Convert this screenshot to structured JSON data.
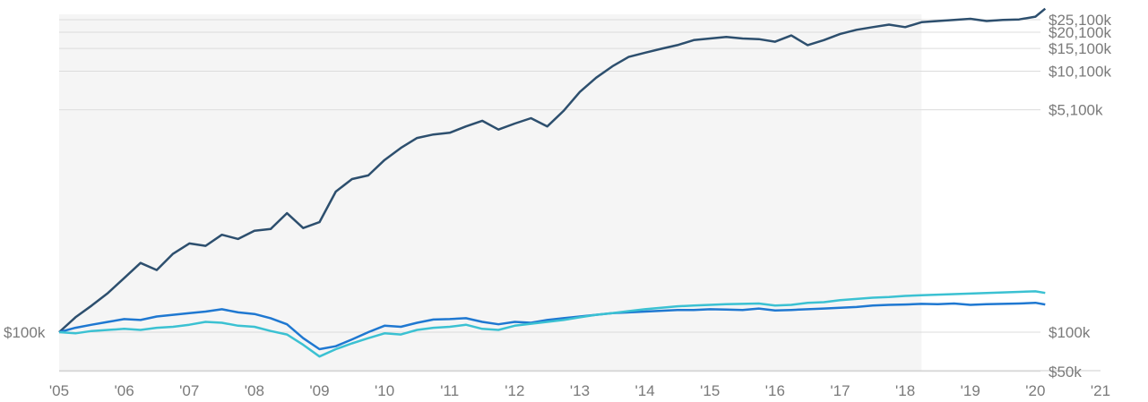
{
  "chart_data": {
    "type": "line",
    "title": "",
    "xlabel": "",
    "ylabel": "",
    "y_scale": "log",
    "grid": true,
    "x_ticks": [
      "'05",
      "'06",
      "'07",
      "'08",
      "'09",
      "'10",
      "'11",
      "'12",
      "'13",
      "'14",
      "'15",
      "'16",
      "'17",
      "'18",
      "'19",
      "'20",
      "'21"
    ],
    "x_range": [
      2005,
      2021
    ],
    "shaded_region": [
      2005,
      2018.25
    ],
    "y_left_ticks": [
      {
        "value": 100,
        "label": "$100k"
      }
    ],
    "y_right_ticks": [
      {
        "value": 25100,
        "label": "$25,100k"
      },
      {
        "value": 20100,
        "label": "$20,100k"
      },
      {
        "value": 15100,
        "label": "$15,100k"
      },
      {
        "value": 10100,
        "label": "$10,100k"
      },
      {
        "value": 5100,
        "label": "$5,100k"
      },
      {
        "value": 100,
        "label": "$100k"
      },
      {
        "value": 50,
        "label": "$50k"
      }
    ],
    "colors": {
      "series_1": "#2d4f6e",
      "series_2": "#1f78d1",
      "series_3": "#3bc1d2",
      "shade": "#f5f5f5"
    },
    "series": [
      {
        "color": "#2d4f6e",
        "x": [
          2005.0,
          2005.25,
          2005.5,
          2005.75,
          2006.0,
          2006.25,
          2006.5,
          2006.75,
          2007.0,
          2007.25,
          2007.5,
          2007.75,
          2008.0,
          2008.25,
          2008.5,
          2008.75,
          2009.0,
          2009.25,
          2009.5,
          2009.75,
          2010.0,
          2010.25,
          2010.5,
          2010.75,
          2011.0,
          2011.25,
          2011.5,
          2011.75,
          2012.0,
          2012.25,
          2012.5,
          2012.75,
          2013.0,
          2013.25,
          2013.5,
          2013.75,
          2014.0,
          2014.25,
          2014.5,
          2014.75,
          2015.0,
          2015.25,
          2015.5,
          2015.75,
          2016.0,
          2016.25,
          2016.5,
          2016.75,
          2017.0,
          2017.25,
          2017.5,
          2017.75,
          2018.0,
          2018.25,
          2018.5,
          2018.75,
          2019.0,
          2019.25,
          2019.5,
          2019.75,
          2020.0,
          2020.15
        ],
        "y": [
          100,
          130,
          160,
          200,
          260,
          340,
          300,
          400,
          480,
          460,
          560,
          520,
          600,
          620,
          820,
          630,
          700,
          1200,
          1500,
          1600,
          2100,
          2600,
          3100,
          3300,
          3400,
          3800,
          4200,
          3600,
          4000,
          4400,
          3800,
          5000,
          7000,
          9000,
          11000,
          13000,
          14000,
          15000,
          16000,
          17500,
          18000,
          18500,
          18000,
          17800,
          17000,
          19000,
          16000,
          17500,
          19500,
          21000,
          22000,
          23000,
          22000,
          24000,
          24500,
          25000,
          25500,
          24500,
          25000,
          25200,
          26500,
          30500
        ]
      },
      {
        "color": "#1f78d1",
        "x": [
          2005.0,
          2005.25,
          2005.5,
          2005.75,
          2006.0,
          2006.25,
          2006.5,
          2006.75,
          2007.0,
          2007.25,
          2007.5,
          2007.75,
          2008.0,
          2008.25,
          2008.5,
          2008.75,
          2009.0,
          2009.25,
          2009.5,
          2009.75,
          2010.0,
          2010.25,
          2010.5,
          2010.75,
          2011.0,
          2011.25,
          2011.5,
          2011.75,
          2012.0,
          2012.25,
          2012.5,
          2012.75,
          2013.0,
          2013.25,
          2013.5,
          2013.75,
          2014.0,
          2014.25,
          2014.5,
          2014.75,
          2015.0,
          2015.25,
          2015.5,
          2015.75,
          2016.0,
          2016.25,
          2016.5,
          2016.75,
          2017.0,
          2017.25,
          2017.5,
          2017.75,
          2018.0,
          2018.25,
          2018.5,
          2018.75,
          2019.0,
          2019.25,
          2019.5,
          2019.75,
          2020.0,
          2020.15
        ],
        "y": [
          100,
          108,
          114,
          120,
          126,
          124,
          132,
          136,
          140,
          144,
          150,
          142,
          138,
          128,
          115,
          90,
          74,
          78,
          88,
          100,
          112,
          110,
          118,
          125,
          126,
          128,
          120,
          115,
          120,
          118,
          124,
          128,
          132,
          136,
          140,
          142,
          144,
          146,
          148,
          148,
          150,
          149,
          148,
          152,
          147,
          148,
          150,
          152,
          154,
          156,
          160,
          162,
          163,
          165,
          164,
          166,
          162,
          164,
          165,
          166,
          168,
          163
        ]
      },
      {
        "color": "#3bc1d2",
        "x": [
          2005.0,
          2005.25,
          2005.5,
          2005.75,
          2006.0,
          2006.25,
          2006.5,
          2006.75,
          2007.0,
          2007.25,
          2007.5,
          2007.75,
          2008.0,
          2008.25,
          2008.5,
          2008.75,
          2009.0,
          2009.25,
          2009.5,
          2009.75,
          2010.0,
          2010.25,
          2010.5,
          2010.75,
          2011.0,
          2011.25,
          2011.5,
          2011.75,
          2012.0,
          2012.25,
          2012.5,
          2012.75,
          2013.0,
          2013.25,
          2013.5,
          2013.75,
          2014.0,
          2014.25,
          2014.5,
          2014.75,
          2015.0,
          2015.25,
          2015.5,
          2015.75,
          2016.0,
          2016.25,
          2016.5,
          2016.75,
          2017.0,
          2017.25,
          2017.5,
          2017.75,
          2018.0,
          2018.25,
          2018.5,
          2018.75,
          2019.0,
          2019.25,
          2019.5,
          2019.75,
          2020.0,
          2020.15
        ],
        "y": [
          100,
          98,
          102,
          104,
          106,
          104,
          108,
          110,
          114,
          120,
          118,
          112,
          110,
          102,
          96,
          80,
          65,
          74,
          82,
          90,
          98,
          96,
          104,
          108,
          110,
          114,
          106,
          104,
          112,
          116,
          120,
          124,
          130,
          136,
          140,
          145,
          150,
          154,
          158,
          160,
          162,
          164,
          165,
          166,
          160,
          162,
          168,
          170,
          176,
          180,
          184,
          186,
          190,
          192,
          194,
          196,
          198,
          200,
          202,
          204,
          206,
          200
        ]
      }
    ]
  }
}
